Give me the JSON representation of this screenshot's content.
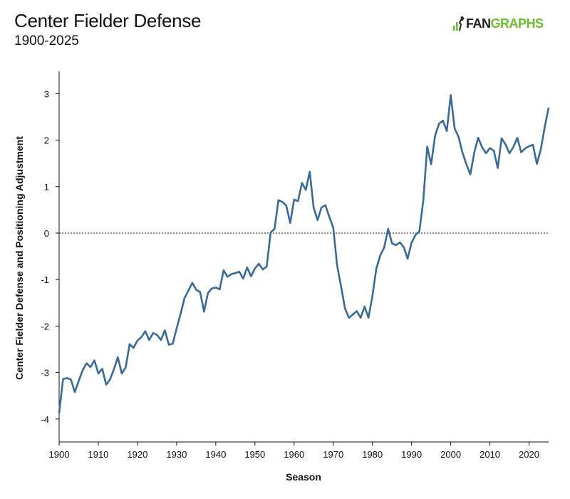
{
  "header": {
    "title": "Center Fielder Defense",
    "subtitle": "1900-2025",
    "logo_left": "FAN",
    "logo_right": "GRAPHS"
  },
  "colors": {
    "line": "#3a6a99",
    "logo_green": "#6abf2f"
  },
  "chart_data": {
    "type": "line",
    "title": "Center Fielder Defense",
    "subtitle": "1900-2025",
    "xlabel": "Season",
    "ylabel": "Center Fielder Defense and Positioning Adjustment",
    "xlim": [
      1900,
      2025
    ],
    "ylim": [
      -4.5,
      3.5
    ],
    "x_ticks": [
      1900,
      1910,
      1920,
      1930,
      1940,
      1950,
      1960,
      1970,
      1980,
      1990,
      2000,
      2010,
      2020
    ],
    "y_ticks": [
      3,
      2,
      1,
      0,
      -1,
      -2,
      -3,
      -4
    ],
    "x_tick_labels": [
      "1900",
      "1910",
      "1920",
      "1930",
      "1940",
      "1950",
      "1960",
      "1970",
      "1980",
      "1990",
      "2000",
      "2010",
      "2020"
    ],
    "y_tick_labels": [
      "3",
      "2",
      "1",
      "0",
      "-1",
      "-2",
      "-3",
      "-4"
    ],
    "reference_line": 0,
    "grid": false,
    "series": [
      {
        "x": [
          1900,
          1901,
          1902,
          1903,
          1904,
          1905,
          1906,
          1907,
          1908,
          1909,
          1910,
          1911,
          1912,
          1913,
          1914,
          1915,
          1916,
          1917,
          1918,
          1919,
          1920,
          1921,
          1922,
          1923,
          1924,
          1925,
          1926,
          1927,
          1928,
          1929,
          1930,
          1931,
          1932,
          1933,
          1934,
          1935,
          1936,
          1937,
          1938,
          1939,
          1940,
          1941,
          1942,
          1943,
          1944,
          1945,
          1946,
          1947,
          1948,
          1949,
          1950,
          1951,
          1952,
          1953,
          1954,
          1955,
          1956,
          1957,
          1958,
          1959,
          1960,
          1961,
          1962,
          1963,
          1964,
          1965,
          1966,
          1967,
          1968,
          1969,
          1970,
          1971,
          1972,
          1973,
          1974,
          1975,
          1976,
          1977,
          1978,
          1979,
          1980,
          1981,
          1982,
          1983,
          1984,
          1985,
          1986,
          1987,
          1988,
          1989,
          1990,
          1991,
          1992,
          1993,
          1994,
          1995,
          1996,
          1997,
          1998,
          1999,
          2000,
          2001,
          2002,
          2003,
          2004,
          2005,
          2006,
          2007,
          2008,
          2009,
          2010,
          2011,
          2012,
          2013,
          2014,
          2015,
          2016,
          2017,
          2018,
          2019,
          2020,
          2021,
          2022,
          2023,
          2024,
          2025
        ],
        "values": [
          -3.87,
          -3.14,
          -3.12,
          -3.15,
          -3.42,
          -3.18,
          -2.95,
          -2.8,
          -2.88,
          -2.74,
          -3.02,
          -2.92,
          -3.26,
          -3.15,
          -2.93,
          -2.67,
          -3.02,
          -2.89,
          -2.39,
          -2.47,
          -2.31,
          -2.24,
          -2.11,
          -2.3,
          -2.15,
          -2.19,
          -2.3,
          -2.09,
          -2.4,
          -2.38,
          -2.05,
          -1.74,
          -1.4,
          -1.24,
          -1.07,
          -1.22,
          -1.27,
          -1.69,
          -1.29,
          -1.19,
          -1.17,
          -1.21,
          -0.8,
          -0.94,
          -0.88,
          -0.86,
          -0.83,
          -0.98,
          -0.74,
          -0.93,
          -0.76,
          -0.66,
          -0.78,
          -0.72,
          0.01,
          0.09,
          0.71,
          0.67,
          0.59,
          0.22,
          0.72,
          0.69,
          1.08,
          0.93,
          1.32,
          0.55,
          0.28,
          0.55,
          0.6,
          0.35,
          0.12,
          -0.7,
          -1.15,
          -1.62,
          -1.82,
          -1.75,
          -1.68,
          -1.82,
          -1.58,
          -1.82,
          -1.35,
          -0.76,
          -0.48,
          -0.31,
          0.09,
          -0.22,
          -0.26,
          -0.2,
          -0.3,
          -0.55,
          -0.21,
          -0.04,
          0.04,
          0.7,
          1.86,
          1.48,
          2.09,
          2.35,
          2.42,
          2.2,
          2.97,
          2.25,
          2.07,
          1.73,
          1.48,
          1.26,
          1.73,
          2.05,
          1.85,
          1.72,
          1.83,
          1.77,
          1.4,
          2.04,
          1.91,
          1.72,
          1.85,
          2.05,
          1.74,
          1.82,
          1.87,
          1.9,
          1.49,
          1.8,
          2.28,
          2.7
        ]
      }
    ]
  }
}
